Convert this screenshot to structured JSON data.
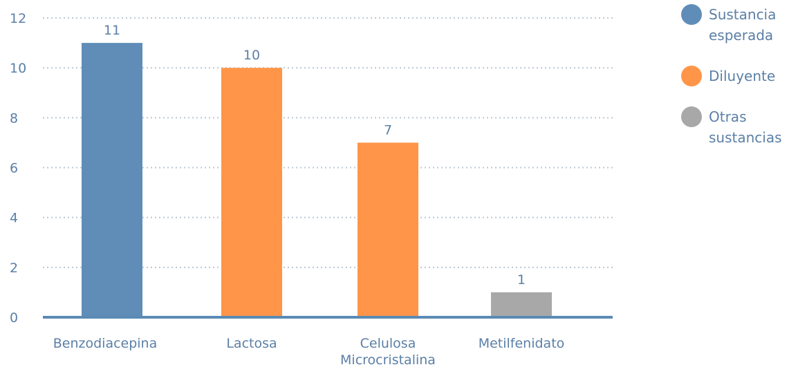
{
  "chart_data": {
    "type": "bar",
    "categories": [
      "Benzodiacepina",
      "Lactosa",
      "Celulosa Microcristalina",
      "Metilfenidato"
    ],
    "category_display_lines": [
      [
        "Benzodiacepina"
      ],
      [
        "Lactosa"
      ],
      [
        "Celulosa",
        "Microcristalina"
      ],
      [
        "Metilfenidato"
      ]
    ],
    "values": [
      11,
      10,
      7,
      1
    ],
    "data_labels": [
      "11",
      "10",
      "7",
      "1"
    ],
    "bar_groups": [
      "Sustancia esperada",
      "Diluyente",
      "Diluyente",
      "Otras sustancias"
    ],
    "ylim": [
      0,
      12
    ],
    "yticks": [
      0,
      2,
      4,
      6,
      8,
      10,
      12
    ],
    "grid": true,
    "legend": {
      "placement": "right",
      "entries": [
        {
          "name": "Sustancia esperada",
          "lines": [
            "Sustancia",
            "esperada"
          ],
          "color": "#5f8db8"
        },
        {
          "name": "Diluyente",
          "lines": [
            "Diluyente"
          ],
          "color": "#ff9548"
        },
        {
          "name": "Otras sustancias",
          "lines": [
            "Otras",
            "sustancias"
          ],
          "color": "#a8a8a8"
        }
      ]
    },
    "colors": {
      "text": "#5b7fa6",
      "grid": "#b9c7d8",
      "axis": "#5b8ab5"
    }
  }
}
